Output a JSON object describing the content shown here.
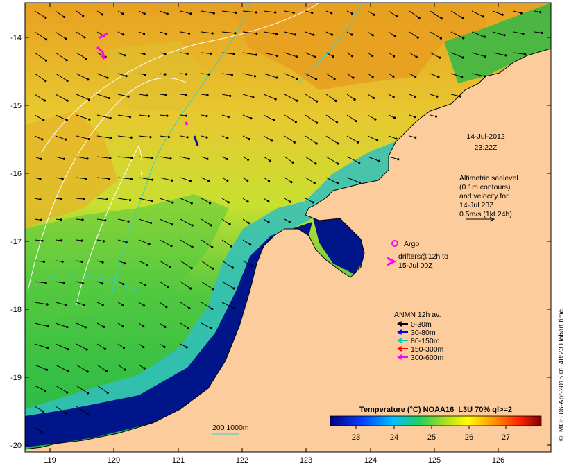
{
  "map": {
    "axis": {
      "lon_ticks": [
        "119",
        "120",
        "121",
        "122",
        "123",
        "124",
        "125",
        "126"
      ],
      "lat_ticks": [
        "-14",
        "-15",
        "-16",
        "-17",
        "-18",
        "-19",
        "-20"
      ]
    },
    "timestamp": {
      "date": "14-Jul-2012",
      "time": "23:22Z"
    },
    "sealevel_note": [
      "Altimetric sealevel",
      "(0.1m contours)",
      "and velocity for",
      "14-Jul 23Z",
      "0.5m/s (1kt 24h)"
    ],
    "legend": {
      "argo": "Argo",
      "drifters": [
        "drifters@12h to",
        "15-Jul 00Z"
      ],
      "anmn_title": "ANMN 12h av.",
      "depth_bins": [
        {
          "label": "0-30m",
          "color": "#000000"
        },
        {
          "label": "30-80m",
          "color": "#0000ff"
        },
        {
          "label": "80-150m",
          "color": "#00cccc"
        },
        {
          "label": "150-300m",
          "color": "#ff0000"
        },
        {
          "label": "300-600m",
          "color": "#ff00ff"
        }
      ]
    },
    "isobath_label": "200  1000m",
    "colorbar": {
      "title": "Temperature (°C) NOAA16_L3U 70% ql>=2",
      "ticks": [
        "23",
        "24",
        "25",
        "26",
        "27"
      ]
    },
    "credit": "© IMOS 06-Apr-2015 01:48:23 Hobart time",
    "colors": {
      "land": "#fccc9c",
      "deep_blue": "#00158a",
      "warm_orange": "#e8a020",
      "green": "#2fbf40"
    }
  }
}
